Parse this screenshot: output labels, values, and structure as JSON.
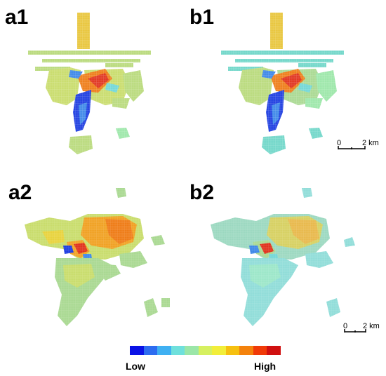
{
  "panels": {
    "a1": {
      "label": "a1"
    },
    "b1": {
      "label": "b1"
    },
    "a2": {
      "label": "a2"
    },
    "b2": {
      "label": "b2"
    }
  },
  "scalebar_top": {
    "zero": "0",
    "dist": "2 km"
  },
  "scalebar_bottom": {
    "zero": "0",
    "dist": "2 km"
  },
  "legend": {
    "low": "Low",
    "high": "High",
    "colors": [
      "#0a12e6",
      "#2d6cf0",
      "#3fb0f2",
      "#6fe0dc",
      "#9be6a8",
      "#d6f060",
      "#f2ee3a",
      "#f6c010",
      "#f4820c",
      "#f03a08",
      "#d01010"
    ]
  },
  "colors": {
    "c_low": "#1a3ae0",
    "c_blue": "#3a86e8",
    "c_cyan": "#6fd6d6",
    "c_green": "#a8d890",
    "c_yellowgreen": "#c8dc6a",
    "c_yellow": "#e8d23a",
    "c_orange": "#f0a020",
    "c_darkorange": "#ee7a14",
    "c_red": "#e0301a"
  }
}
